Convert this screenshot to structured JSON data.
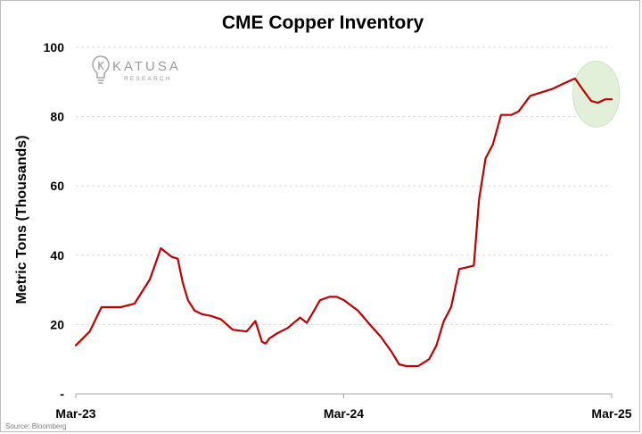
{
  "chart_data": {
    "type": "line",
    "title": "CME Copper Inventory",
    "ylabel": "Metric Tons (Thousands)",
    "xlabel": "",
    "ylim": [
      0,
      100
    ],
    "y_ticks": [
      {
        "value": 0,
        "label": "-"
      },
      {
        "value": 20,
        "label": "20"
      },
      {
        "value": 40,
        "label": "40"
      },
      {
        "value": 60,
        "label": "60"
      },
      {
        "value": 80,
        "label": "80"
      },
      {
        "value": 100,
        "label": "100"
      }
    ],
    "x_ticks": [
      "Mar-23",
      "Mar-24",
      "Mar-25"
    ],
    "x_range": [
      "2023-03",
      "2025-03"
    ],
    "grid": "horizontal dashed",
    "line_color": "#c00000",
    "highlight": {
      "x_range": [
        "2025-01",
        "2025-03"
      ],
      "y_range": [
        77,
        96
      ],
      "color": "#e2efd9"
    },
    "series": [
      {
        "x": [
          "2023-03-01",
          "2023-03-20",
          "2023-04-05",
          "2023-04-15",
          "2023-05-01",
          "2023-05-20",
          "2023-06-10",
          "2023-06-25",
          "2023-07-10",
          "2023-07-18",
          "2023-07-25",
          "2023-08-01",
          "2023-08-10",
          "2023-08-20",
          "2023-09-01",
          "2023-09-15",
          "2023-10-01",
          "2023-10-20",
          "2023-11-01",
          "2023-11-10",
          "2023-11-15",
          "2023-11-20",
          "2023-12-01",
          "2023-12-15",
          "2024-01-01",
          "2024-01-10",
          "2024-01-20",
          "2024-01-28",
          "2024-02-10",
          "2024-02-20",
          "2024-03-01",
          "2024-03-20",
          "2024-04-05",
          "2024-04-20",
          "2024-05-05",
          "2024-05-15",
          "2024-05-25",
          "2024-06-10",
          "2024-06-25",
          "2024-07-05",
          "2024-07-15",
          "2024-07-25",
          "2024-08-05",
          "2024-08-15",
          "2024-08-25",
          "2024-09-01",
          "2024-09-10",
          "2024-09-20",
          "2024-10-01",
          "2024-10-15",
          "2024-10-25",
          "2024-11-10",
          "2024-11-25",
          "2024-12-10",
          "2024-12-25",
          "2025-01-10",
          "2025-01-20",
          "2025-02-01",
          "2025-02-10",
          "2025-02-20",
          "2025-03-01"
        ],
        "y": [
          14,
          18,
          25,
          25,
          25,
          26,
          33,
          42,
          39.5,
          39,
          32,
          27,
          24,
          23,
          22.5,
          21.5,
          18.5,
          18,
          21,
          15,
          14.5,
          16,
          17.5,
          19,
          22,
          20.5,
          24,
          27,
          28,
          28,
          27,
          24,
          20,
          16.5,
          12,
          8.5,
          8,
          8,
          10,
          14,
          21,
          25,
          36,
          36.5,
          37,
          56,
          68,
          72,
          80.5,
          80.5,
          81.5,
          86,
          87,
          88,
          89.5,
          91,
          88,
          84.5,
          84,
          85,
          85
        ]
      }
    ],
    "logo": {
      "name": "KATUSA",
      "sub": "RESEARCH",
      "icon": "lightbulb-k-icon"
    },
    "source": "Source: Bloomberg"
  }
}
